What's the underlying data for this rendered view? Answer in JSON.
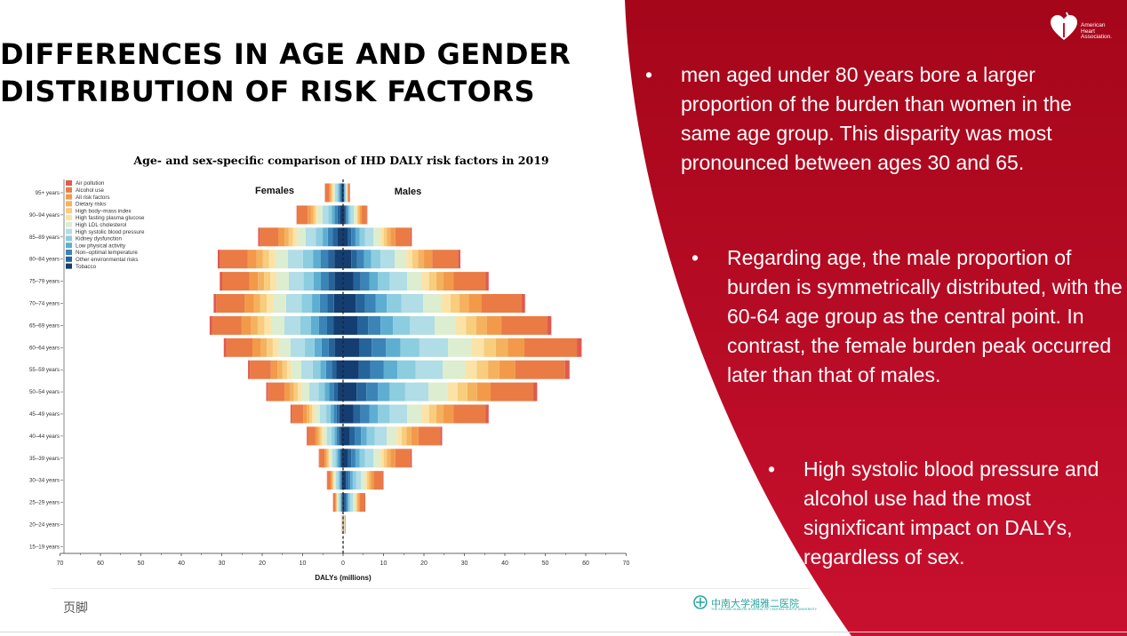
{
  "slide": {
    "title_lines": [
      "DIFFERENCES IN AGE AND GENDER",
      "DISTRIBUTION OF RISK FACTORS"
    ],
    "bullets": [
      {
        "marker": "•",
        "text": "men aged under 80 years bore a larger proportion of the burden than women in the same age group. This disparity was most pronounced between ages 30 and 65."
      },
      {
        "marker": "•",
        "text": "Regarding age, the male proportion of burden is symmetrically distributed, with the 60-64 age group as the central point. In contrast, the female burden peak occurred later than that of males."
      },
      {
        "marker": "•",
        "text": " High systolic blood pressure and alcohol use had the most signixficant impact on DALYs, regardless of sex."
      }
    ],
    "footer_text": "页脚",
    "logo": {
      "lines": [
        "American",
        "Heart",
        "Association."
      ]
    },
    "hospital_logo": {
      "name": "中南大学湘雅二医院",
      "subtitle": "THE SECOND XIANGYA HOSPITAL OF CENTRAL SOUTH UNIVERSITY"
    },
    "colors": {
      "red": "#c8102e",
      "dark_red": "#a50d1f"
    }
  },
  "chart_data": {
    "type": "bar",
    "orientation": "horizontal-diverging",
    "title": "Age- and sex-specific comparison of IHD DALY risk factors in 2019",
    "xlabel": "DALYs (millions)",
    "left_label": "Females",
    "right_label": "Males",
    "xlim": [
      -70,
      70
    ],
    "xticks": [
      -70,
      -60,
      -50,
      -40,
      -30,
      -20,
      -10,
      0,
      10,
      20,
      30,
      40,
      50,
      60,
      70
    ],
    "xtick_labels": [
      "70",
      "60",
      "50",
      "40",
      "30",
      "20",
      "10",
      "0",
      "10",
      "20",
      "30",
      "40",
      "50",
      "60",
      "70"
    ],
    "categories": [
      "95+ years",
      "90–94 years",
      "85–89 years",
      "80–84 years",
      "75–79 years",
      "70–74 years",
      "65–69 years",
      "60–64 years",
      "55–59 years",
      "50–54 years",
      "45–49 years",
      "40–44 years",
      "35–39 years",
      "30–34 years",
      "25–29 years",
      "20–24 years",
      "15–19 years"
    ],
    "series": [
      {
        "name": "Air pollution",
        "color": "#e05a4f"
      },
      {
        "name": "Alcohol use",
        "color": "#ea7b45"
      },
      {
        "name": "All risk factors",
        "color": "#f29a4a"
      },
      {
        "name": "Dietary risks",
        "color": "#f5b25e"
      },
      {
        "name": "High body–mass index",
        "color": "#f8cd7d"
      },
      {
        "name": "High fasting plasma glucose",
        "color": "#fbe3a8"
      },
      {
        "name": "High LDL cholesterol",
        "color": "#dcedd0"
      },
      {
        "name": "High systolic blood pressure",
        "color": "#b0dde6"
      },
      {
        "name": "Kidney dysfunction",
        "color": "#8ccde0"
      },
      {
        "name": "Low physical activity",
        "color": "#5eaed2"
      },
      {
        "name": "Non–optimal temperature",
        "color": "#3a84b8"
      },
      {
        "name": "Other environmental risks",
        "color": "#25649a"
      },
      {
        "name": "Tobacco",
        "color": "#143e72"
      }
    ],
    "female_totals": [
      4.5,
      11.5,
      21,
      31,
      30.5,
      32,
      33,
      29.5,
      23.5,
      19,
      13,
      9,
      6,
      4,
      2.5,
      0.3,
      0
    ],
    "male_totals": [
      1.7,
      6,
      17,
      29,
      36,
      45,
      51.5,
      59,
      56,
      48,
      36,
      24.5,
      17,
      10,
      5.5,
      0.6,
      0.1
    ],
    "segment_shares": [
      0.02,
      0.22,
      0.07,
      0.05,
      0.05,
      0.05,
      0.1,
      0.12,
      0.08,
      0.06,
      0.06,
      0.05,
      0.07
    ]
  }
}
